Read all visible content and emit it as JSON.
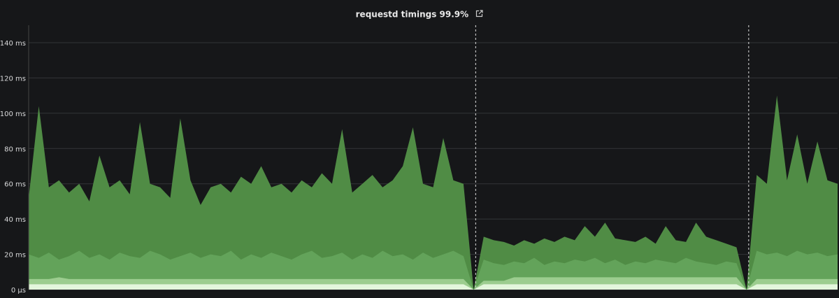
{
  "panel": {
    "title": "requestd timings 99.9%",
    "link_icon": "external-link-icon"
  },
  "chart_data": {
    "type": "area",
    "ylim": [
      0,
      150
    ],
    "yticks": [
      0,
      20,
      40,
      60,
      80,
      100,
      120,
      140
    ],
    "ytick_labels": [
      "0 µs",
      "20 ms",
      "40 ms",
      "60 ms",
      "80 ms",
      "100 ms",
      "120 ms",
      "140 ms"
    ],
    "grid": true,
    "annotations": [
      44,
      71
    ],
    "series": [
      {
        "color": "#508c45",
        "values": [
          52,
          104,
          58,
          62,
          55,
          60,
          50,
          76,
          58,
          62,
          54,
          95,
          60,
          58,
          52,
          97,
          62,
          48,
          58,
          60,
          55,
          64,
          60,
          70,
          58,
          60,
          55,
          62,
          58,
          66,
          60,
          91,
          55,
          60,
          65,
          58,
          62,
          70,
          92,
          60,
          58,
          86,
          62,
          60,
          0,
          30,
          28,
          27,
          25,
          28,
          26,
          29,
          27,
          30,
          28,
          36,
          30,
          38,
          29,
          28,
          27,
          30,
          26,
          36,
          28,
          27,
          38,
          30,
          28,
          26,
          24,
          0,
          65,
          60,
          110,
          62,
          88,
          60,
          84,
          62,
          60
        ]
      },
      {
        "color": "#63a35a",
        "values": [
          20,
          18,
          21,
          17,
          19,
          22,
          18,
          20,
          17,
          21,
          19,
          18,
          22,
          20,
          17,
          19,
          21,
          18,
          20,
          19,
          22,
          17,
          20,
          18,
          21,
          19,
          17,
          20,
          22,
          18,
          19,
          21,
          17,
          20,
          18,
          22,
          19,
          20,
          17,
          21,
          18,
          20,
          22,
          19,
          0,
          17,
          15,
          14,
          16,
          15,
          18,
          14,
          16,
          15,
          17,
          16,
          18,
          15,
          17,
          14,
          16,
          15,
          17,
          16,
          15,
          18,
          16,
          15,
          14,
          16,
          15,
          0,
          22,
          20,
          21,
          19,
          22,
          20,
          21,
          19,
          20
        ]
      },
      {
        "color": "#9ccd8f",
        "values": [
          6,
          6,
          6,
          7,
          6,
          6,
          6,
          6,
          6,
          6,
          6,
          6,
          6,
          6,
          6,
          6,
          6,
          6,
          6,
          6,
          6,
          6,
          6,
          6,
          6,
          6,
          6,
          6,
          6,
          6,
          6,
          6,
          6,
          6,
          6,
          6,
          6,
          6,
          6,
          6,
          6,
          6,
          6,
          6,
          0,
          5,
          5,
          5,
          7,
          7,
          7,
          7,
          7,
          7,
          7,
          7,
          7,
          7,
          7,
          7,
          7,
          7,
          7,
          7,
          7,
          7,
          7,
          7,
          7,
          7,
          7,
          0,
          6,
          6,
          6,
          6,
          6,
          6,
          6,
          6,
          6
        ]
      },
      {
        "color": "#e3f6dc",
        "values": [
          3,
          3,
          3,
          3,
          3,
          3,
          3,
          3,
          3,
          3,
          3,
          3,
          3,
          3,
          3,
          3,
          3,
          3,
          3,
          3,
          3,
          3,
          3,
          3,
          3,
          3,
          3,
          3,
          3,
          3,
          3,
          3,
          3,
          3,
          3,
          3,
          3,
          3,
          3,
          3,
          3,
          3,
          3,
          3,
          0,
          3,
          3,
          3,
          3,
          3,
          3,
          3,
          3,
          3,
          3,
          3,
          3,
          3,
          3,
          3,
          3,
          3,
          3,
          3,
          3,
          3,
          3,
          3,
          3,
          3,
          3,
          0,
          3,
          3,
          3,
          3,
          3,
          3,
          3,
          3,
          3
        ]
      }
    ]
  }
}
